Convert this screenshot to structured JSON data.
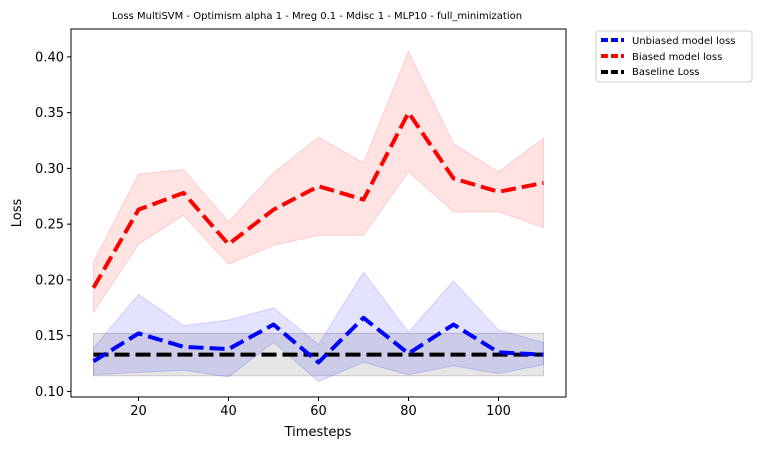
{
  "chart_data": {
    "type": "line",
    "title": "Loss MultiSVM - Optimism alpha 1 - Mreg 0.1 - Mdisc 1 - MLP10 - full_minimization",
    "xlabel": "Timesteps",
    "ylabel": "Loss",
    "xlim": [
      5,
      115
    ],
    "ylim": [
      0.095,
      0.425
    ],
    "xticks": [
      20,
      40,
      60,
      80,
      100
    ],
    "yticks": [
      0.1,
      0.15,
      0.2,
      0.25,
      0.3,
      0.35,
      0.4
    ],
    "ytick_labels": [
      "0.10",
      "0.15",
      "0.20",
      "0.25",
      "0.30",
      "0.35",
      "0.40"
    ],
    "grid": false,
    "legend_position": "outside-top-right",
    "x": [
      10,
      20,
      30,
      40,
      50,
      60,
      70,
      80,
      90,
      100,
      110
    ],
    "series": [
      {
        "name": "Unbiased model loss",
        "color": "#0000ff",
        "values": [
          0.127,
          0.152,
          0.14,
          0.138,
          0.16,
          0.126,
          0.166,
          0.134,
          0.16,
          0.135,
          0.133
        ],
        "lower": [
          0.115,
          0.117,
          0.119,
          0.113,
          0.144,
          0.109,
          0.126,
          0.115,
          0.123,
          0.116,
          0.124
        ],
        "upper": [
          0.139,
          0.187,
          0.159,
          0.164,
          0.175,
          0.142,
          0.207,
          0.153,
          0.199,
          0.155,
          0.144
        ]
      },
      {
        "name": "Biased model loss",
        "color": "#ff0000",
        "values": [
          0.193,
          0.263,
          0.278,
          0.232,
          0.263,
          0.284,
          0.272,
          0.35,
          0.291,
          0.279,
          0.287
        ],
        "lower": [
          0.171,
          0.232,
          0.258,
          0.214,
          0.231,
          0.24,
          0.24,
          0.297,
          0.261,
          0.261,
          0.247
        ],
        "upper": [
          0.216,
          0.295,
          0.299,
          0.252,
          0.296,
          0.328,
          0.305,
          0.405,
          0.322,
          0.297,
          0.327
        ]
      },
      {
        "name": "Baseline Loss",
        "color": "#000000",
        "values": [
          0.133,
          0.133,
          0.133,
          0.133,
          0.133,
          0.133,
          0.133,
          0.133,
          0.133,
          0.133,
          0.133
        ],
        "lower": [
          0.114,
          0.114,
          0.114,
          0.114,
          0.114,
          0.114,
          0.114,
          0.114,
          0.114,
          0.114,
          0.114
        ],
        "upper": [
          0.152,
          0.152,
          0.152,
          0.152,
          0.152,
          0.152,
          0.152,
          0.152,
          0.152,
          0.152,
          0.152
        ]
      }
    ],
    "band_colors": {
      "Unbiased model loss": "#0000ff",
      "Biased model loss": "#ff0000",
      "Baseline Loss": "#808080"
    }
  }
}
